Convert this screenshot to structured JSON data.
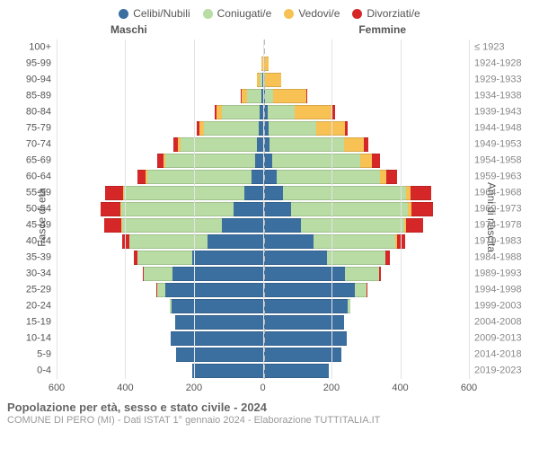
{
  "chart": {
    "type": "population-pyramid-stacked",
    "legend": [
      {
        "label": "Celibi/Nubili",
        "color": "#3b6fa0"
      },
      {
        "label": "Coniugati/e",
        "color": "#b8dca3"
      },
      {
        "label": "Vedovi/e",
        "color": "#f7c154"
      },
      {
        "label": "Divorziati/e",
        "color": "#d62728"
      }
    ],
    "headers": {
      "left": "Maschi",
      "right": "Femmine"
    },
    "side_titles": {
      "left": "Fasce di età",
      "right": "Anni di nascita"
    },
    "x_axis": {
      "max": 600,
      "ticks": [
        600,
        400,
        200,
        0,
        200,
        400,
        600
      ]
    },
    "colors": {
      "grid": "#e3e3e3",
      "center_dash": "#bbbbbb",
      "label": "#555555",
      "label_right": "#888888"
    },
    "rows": [
      {
        "age": "100+",
        "born": "≤ 1923",
        "m": [
          0,
          0,
          0,
          0
        ],
        "f": [
          0,
          0,
          2,
          0
        ]
      },
      {
        "age": "95-99",
        "born": "1924-1928",
        "m": [
          0,
          0,
          4,
          0
        ],
        "f": [
          0,
          2,
          14,
          0
        ]
      },
      {
        "age": "90-94",
        "born": "1929-1933",
        "m": [
          2,
          6,
          10,
          0
        ],
        "f": [
          2,
          4,
          48,
          0
        ]
      },
      {
        "age": "85-89",
        "born": "1934-1938",
        "m": [
          4,
          42,
          16,
          2
        ],
        "f": [
          6,
          24,
          96,
          4
        ]
      },
      {
        "age": "80-84",
        "born": "1939-1943",
        "m": [
          10,
          108,
          18,
          4
        ],
        "f": [
          14,
          78,
          110,
          8
        ]
      },
      {
        "age": "75-79",
        "born": "1944-1948",
        "m": [
          12,
          160,
          12,
          8
        ],
        "f": [
          16,
          140,
          82,
          10
        ]
      },
      {
        "age": "70-74",
        "born": "1949-1953",
        "m": [
          18,
          222,
          8,
          12
        ],
        "f": [
          20,
          216,
          58,
          14
        ]
      },
      {
        "age": "65-69",
        "born": "1954-1958",
        "m": [
          22,
          262,
          5,
          18
        ],
        "f": [
          28,
          256,
          34,
          22
        ]
      },
      {
        "age": "60-64",
        "born": "1959-1963",
        "m": [
          34,
          302,
          4,
          26
        ],
        "f": [
          40,
          300,
          20,
          30
        ]
      },
      {
        "age": "55-59",
        "born": "1964-1968",
        "m": [
          54,
          350,
          3,
          52
        ],
        "f": [
          58,
          360,
          12,
          60
        ]
      },
      {
        "age": "50-54",
        "born": "1969-1973",
        "m": [
          84,
          328,
          3,
          58
        ],
        "f": [
          82,
          340,
          10,
          64
        ]
      },
      {
        "age": "45-49",
        "born": "1974-1978",
        "m": [
          120,
          290,
          2,
          50
        ],
        "f": [
          110,
          302,
          6,
          48
        ]
      },
      {
        "age": "40-44",
        "born": "1979-1983",
        "m": [
          160,
          228,
          1,
          20
        ],
        "f": [
          148,
          238,
          4,
          24
        ]
      },
      {
        "age": "35-39",
        "born": "1984-1988",
        "m": [
          206,
          158,
          0,
          10
        ],
        "f": [
          188,
          168,
          2,
          12
        ]
      },
      {
        "age": "30-34",
        "born": "1989-1993",
        "m": [
          262,
          84,
          0,
          4
        ],
        "f": [
          240,
          98,
          1,
          6
        ]
      },
      {
        "age": "25-29",
        "born": "1994-1998",
        "m": [
          284,
          24,
          0,
          1
        ],
        "f": [
          268,
          34,
          0,
          2
        ]
      },
      {
        "age": "20-24",
        "born": "1999-2003",
        "m": [
          266,
          4,
          0,
          0
        ],
        "f": [
          248,
          6,
          0,
          0
        ]
      },
      {
        "age": "15-19",
        "born": "2004-2008",
        "m": [
          256,
          0,
          0,
          0
        ],
        "f": [
          236,
          0,
          0,
          0
        ]
      },
      {
        "age": "10-14",
        "born": "2009-2013",
        "m": [
          268,
          0,
          0,
          0
        ],
        "f": [
          244,
          0,
          0,
          0
        ]
      },
      {
        "age": "5-9",
        "born": "2014-2018",
        "m": [
          252,
          0,
          0,
          0
        ],
        "f": [
          230,
          0,
          0,
          0
        ]
      },
      {
        "age": "0-4",
        "born": "2019-2023",
        "m": [
          206,
          0,
          0,
          0
        ],
        "f": [
          192,
          0,
          0,
          0
        ]
      }
    ]
  },
  "footer": {
    "title": "Popolazione per età, sesso e stato civile - 2024",
    "subtitle": "COMUNE DI PERO (MI) - Dati ISTAT 1° gennaio 2024 - Elaborazione TUTTITALIA.IT"
  }
}
